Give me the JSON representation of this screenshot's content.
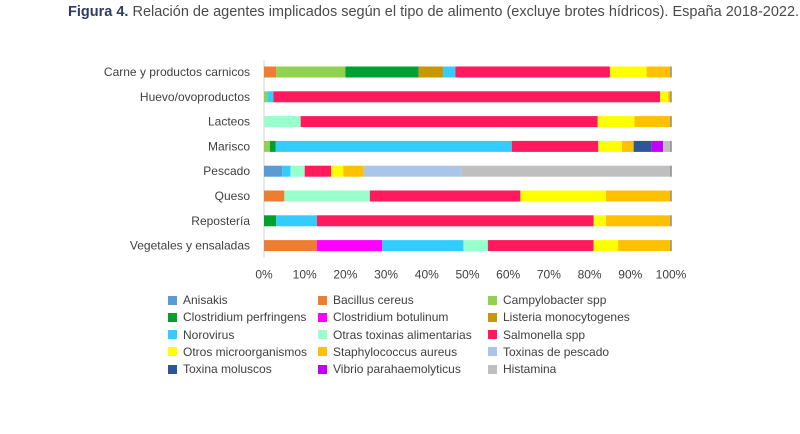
{
  "caption": {
    "figure_label": "Figura 4.",
    "text": "Relación de agentes implicados según el tipo de alimento (excluye brotes hídricos). España 2018-2022."
  },
  "chart_data": {
    "type": "bar",
    "orientation": "horizontal",
    "stacked": "percent",
    "title": "Relación de agentes implicados según el tipo de alimento (excluye brotes hídricos). España 2018-2022.",
    "xlim": [
      0,
      100
    ],
    "xticks": [
      "0%",
      "10%",
      "20%",
      "30%",
      "40%",
      "50%",
      "60%",
      "70%",
      "80%",
      "90%",
      "100%"
    ],
    "grid": false,
    "legend_position": "bottom",
    "categories": [
      "Carne y productos carnicos",
      "Huevo/ovoproductos",
      "Lacteos",
      "Marisco",
      "Pescado",
      "Queso",
      "Repostería",
      "Vegetales y ensaladas"
    ],
    "series": [
      {
        "name": "Anisakis",
        "color": "#5b9bd5",
        "values": [
          0,
          0,
          0,
          0,
          4.5,
          0,
          0,
          0
        ]
      },
      {
        "name": "Bacillus cereus",
        "color": "#ed7d31",
        "values": [
          3,
          0,
          0,
          0,
          0,
          5,
          0,
          13
        ]
      },
      {
        "name": "Campylobacter spp",
        "color": "#92d050",
        "values": [
          17,
          0.8,
          0,
          1.5,
          0,
          0,
          0,
          0
        ]
      },
      {
        "name": "Clostridium perfringens",
        "color": "#00a030",
        "values": [
          18,
          0,
          0,
          1.5,
          0,
          0,
          3,
          0
        ]
      },
      {
        "name": "Clostridium botulinum",
        "color": "#ff00ff",
        "values": [
          0,
          0,
          0,
          0,
          0,
          0,
          0,
          16
        ]
      },
      {
        "name": "Listeria monocytogenes",
        "color": "#c99700",
        "values": [
          6,
          0,
          0,
          0,
          0,
          0,
          0,
          0
        ]
      },
      {
        "name": "Norovirus",
        "color": "#33ccff",
        "values": [
          3,
          1.5,
          0,
          60,
          2,
          0,
          10,
          20
        ]
      },
      {
        "name": "Otras toxinas alimentarias",
        "color": "#99ffcc",
        "values": [
          0,
          0,
          9,
          0,
          3.5,
          21,
          0,
          6
        ]
      },
      {
        "name": "Salmonella spp",
        "color": "#ff1a5e",
        "values": [
          38,
          95,
          73,
          22,
          6.5,
          37,
          68,
          26
        ]
      },
      {
        "name": "Otros microorganismos",
        "color": "#ffff00",
        "values": [
          9,
          2,
          9,
          6,
          3,
          21,
          3,
          6
        ]
      },
      {
        "name": "Staphylococcus aureus",
        "color": "#ffc000",
        "values": [
          6,
          0.7,
          9,
          3,
          5,
          16,
          16,
          13
        ]
      },
      {
        "name": "Toxinas de pescado",
        "color": "#a9c6e8",
        "values": [
          0,
          0,
          0,
          0,
          24,
          0,
          0,
          0
        ]
      },
      {
        "name": "Toxina moluscos",
        "color": "#2e5597",
        "values": [
          0,
          0,
          0,
          4.5,
          0,
          0,
          0,
          0
        ]
      },
      {
        "name": "Vibrio parahaemolyticus",
        "color": "#c000ff",
        "values": [
          0,
          0,
          0,
          3,
          0,
          0,
          0,
          0
        ]
      },
      {
        "name": "Histamina",
        "color": "#bfbfbf",
        "values": [
          0,
          0,
          0,
          2,
          51.5,
          0,
          0,
          0
        ]
      }
    ]
  }
}
